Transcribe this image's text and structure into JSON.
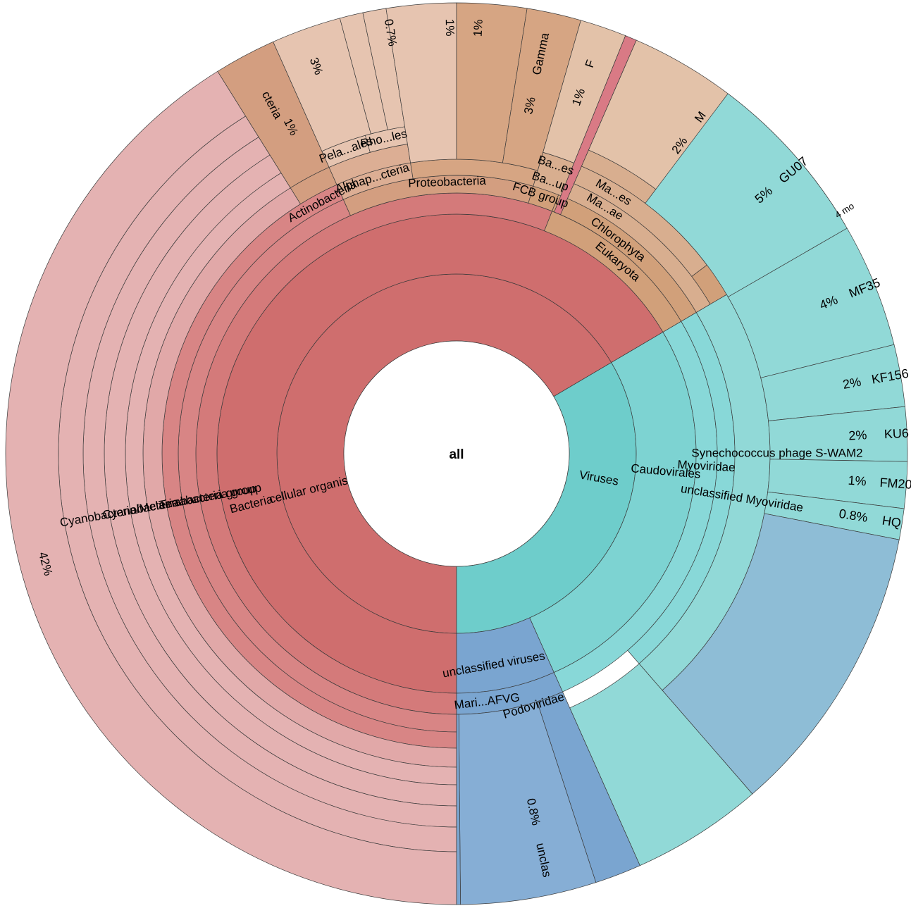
{
  "chart_data": {
    "type": "sunburst",
    "center_label": "all",
    "colors": {
      "cellular_organisms": "#cf6e6e",
      "bacteria": "#d47a7a",
      "terrabacteria": "#d88585",
      "cyanobacteria": "#e1a8a8",
      "cyanobacteria_leaf": "#e4b2b2",
      "proteobacteria": "#d39e80",
      "alphaproteobacteria": "#dcae94",
      "alpha_leaf": "#e6c4b0",
      "gamma": "#d6a583",
      "eukaryota": "#d1a07a",
      "chlorophyta": "#d8ae8f",
      "fcb_leaf": "#e3c2a9",
      "viruses": "#6ecdcb",
      "caudovirales": "#7dd3d2",
      "myoviridae": "#88d8d8",
      "synechococcus_phage": "#91d9d7",
      "synechococcus_large": "#8ebdd6",
      "unclassified_viruses": "#7aa5d0",
      "unclassified_leaf": "#86aed5",
      "pink_strip": "#d97a85"
    },
    "wedge_labels": {
      "cellular_organisms": "cellular organisms",
      "bacteria": "Bacteria",
      "terrabacteria": "Terrabacteria group",
      "cyanomelaina": "Cyanobacteria/Melainabacteria group",
      "cyanobacteria": "Cyanobacteria",
      "cyano_pct": "42%",
      "actinobacteria": "Actinobacteria",
      "actino_leaf": "cteria",
      "actino_pct": "1%",
      "proteobacteria": "Proteobacteria",
      "alphaproteobacteria": "Alphap...cteria",
      "pelagibacterales": "Pela...ales",
      "rhodobacterales": "Rho...les",
      "alpha_pct_3": "3%",
      "alpha_pct_07": "0.7%",
      "alpha_pct_1a": "1%",
      "alpha_pct_1b": "1%",
      "gamma_pct": "3%",
      "gamma_name": "Gamma",
      "fcb_group": "FCB group",
      "bacteroidetes_up": "Ba...up",
      "bacteroidetes_es": "Ba...es",
      "fcb_pct": "1%",
      "fcb_leaf_name": "F",
      "eukaryota": "Eukaryota",
      "chlorophyta": "Chlorophyta",
      "mamiellophyceae": "Ma...ae",
      "mamiellales": "Ma...es",
      "euk_pct": "2%",
      "euk_leaf_name": "M",
      "viruses": "Viruses",
      "caudovirales": "Caudovirales",
      "myoviridae": "Myoviridae",
      "unclassified_myoviridae": "unclassified Myoviridae",
      "synechococcus_phage": "Synechococcus phage S-WAM2",
      "unclassified_viruses": "unclassified viruses",
      "mari_afvg": "Mari...AFVG",
      "podoviridae": "Podoviridae",
      "uv_pct": "0.8%",
      "uv_leaf_name": "unclas"
    },
    "leaf_labels": [
      {
        "pct": "5%",
        "name": "GU07"
      },
      {
        "pct": "4%",
        "name": "MF35"
      },
      {
        "pct": "2%",
        "name": "KF156"
      },
      {
        "pct": "2%",
        "name": "KU6"
      },
      {
        "pct": "1%",
        "name": "FM20"
      },
      {
        "pct": "0.8%",
        "name": "HQ"
      }
    ],
    "more_label": "4 mo"
  }
}
